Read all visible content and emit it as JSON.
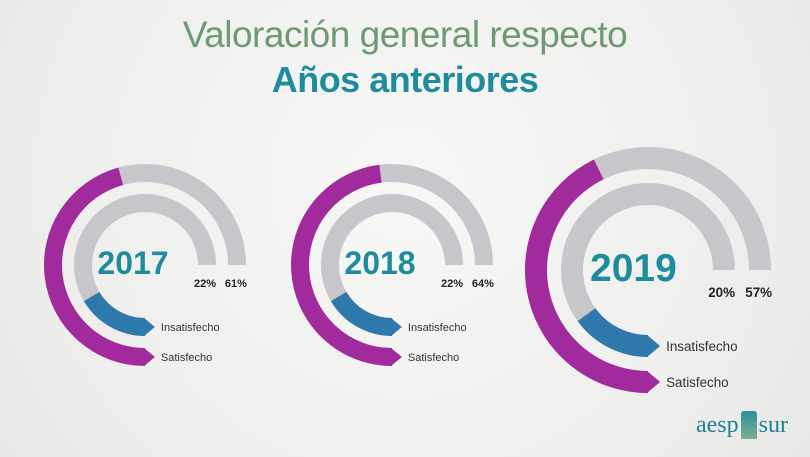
{
  "title": "Valoración general respecto",
  "subtitle": "Años anteriores",
  "logo": {
    "left": "aesp",
    "right": "sur"
  },
  "colors": {
    "insatisfecho": "#2f78ab",
    "satisfecho": "#a12b9c",
    "track": "#c6c6cb",
    "year": "#1e8c9c"
  },
  "chart_data": [
    {
      "type": "pie",
      "year": "2017",
      "series": [
        {
          "name": "Insatisfecho",
          "value": 22,
          "label": "22%"
        },
        {
          "name": "Satisfecho",
          "value": 61,
          "label": "61%"
        }
      ]
    },
    {
      "type": "pie",
      "year": "2018",
      "series": [
        {
          "name": "Insatisfecho",
          "value": 22,
          "label": "22%"
        },
        {
          "name": "Satisfecho",
          "value": 64,
          "label": "64%"
        }
      ]
    },
    {
      "type": "pie",
      "year": "2019",
      "series": [
        {
          "name": "Insatisfecho",
          "value": 20,
          "label": "20%"
        },
        {
          "name": "Satisfecho",
          "value": 57,
          "label": "57%"
        }
      ]
    }
  ]
}
